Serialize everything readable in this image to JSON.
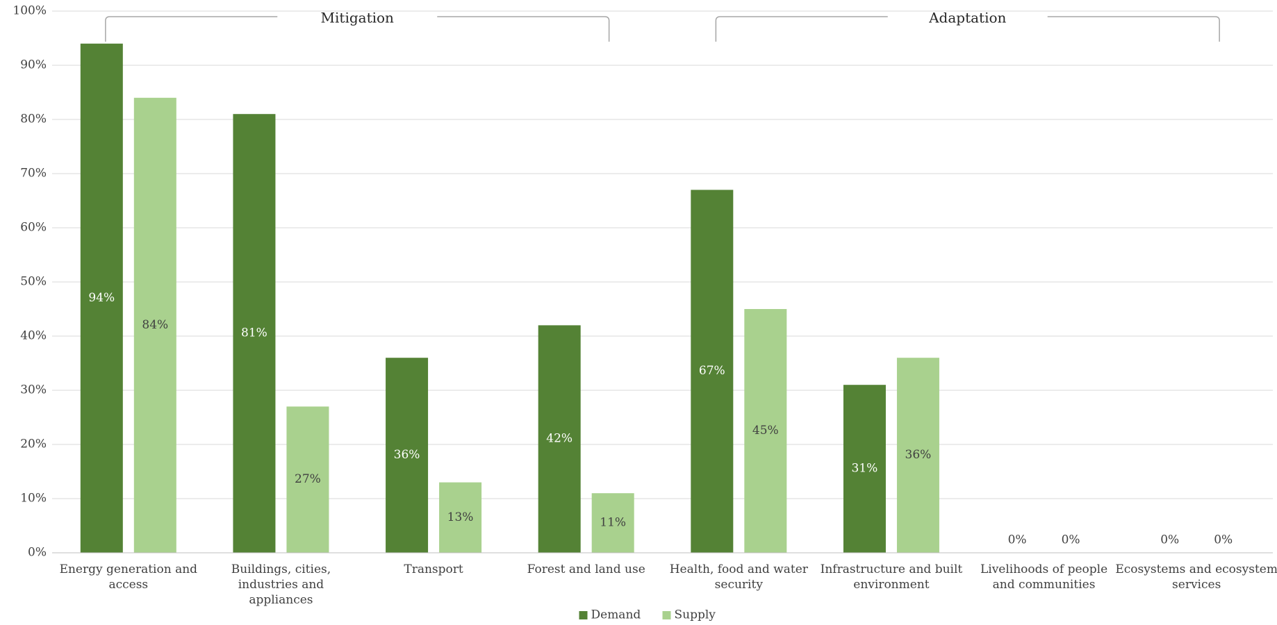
{
  "chart_data": {
    "type": "bar",
    "annotations": [
      "Mitigation",
      "Adaptation"
    ],
    "categories": [
      "Energy generation and access",
      "Buildings, cities, industries and appliances",
      "Transport",
      "Forest and land use",
      "Health, food and water security",
      "Infrastructure and built environment",
      "Livelihoods of people and communities",
      "Ecosystems and ecosystem services"
    ],
    "series": [
      {
        "name": "Demand",
        "color": "#548235",
        "label_color": "#ffffff",
        "values": [
          94,
          81,
          36,
          42,
          67,
          31,
          0,
          0
        ],
        "value_labels": [
          "94%",
          "81%",
          "36%",
          "42%",
          "67%",
          "31%",
          "0%",
          "0%"
        ]
      },
      {
        "name": "Supply",
        "color": "#a9d18e",
        "label_color": "#404040",
        "values": [
          84,
          27,
          13,
          11,
          45,
          36,
          0,
          0
        ],
        "value_labels": [
          "84%",
          "27%",
          "13%",
          "11%",
          "45%",
          "36%",
          "0%",
          "0%"
        ]
      }
    ],
    "ylim": [
      0,
      100
    ],
    "yticks": [
      {
        "value": 0,
        "label": "0%"
      },
      {
        "value": 10,
        "label": "10%"
      },
      {
        "value": 20,
        "label": "20%"
      },
      {
        "value": 30,
        "label": "30%"
      },
      {
        "value": 40,
        "label": "40%"
      },
      {
        "value": 50,
        "label": "50%"
      },
      {
        "value": 60,
        "label": "60%"
      },
      {
        "value": 70,
        "label": "70%"
      },
      {
        "value": 80,
        "label": "80%"
      },
      {
        "value": 90,
        "label": "90%"
      },
      {
        "value": 100,
        "label": "100%"
      }
    ],
    "grid": true,
    "legend": "bottom"
  }
}
